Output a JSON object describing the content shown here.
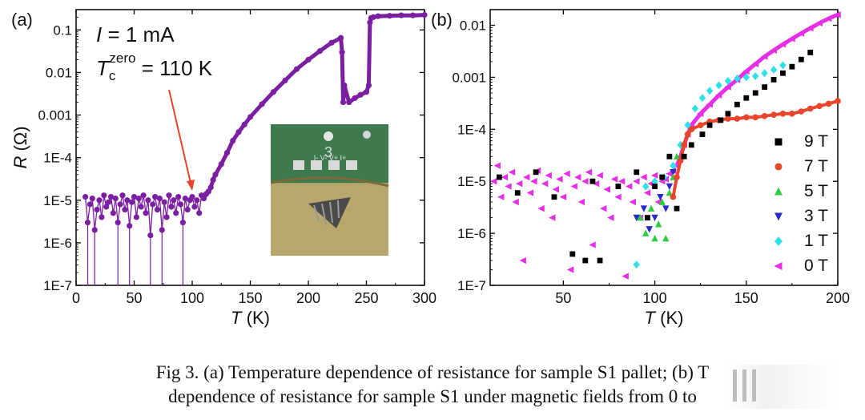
{
  "chart_data": [
    {
      "panel_label": "(a)",
      "type": "scatter",
      "xlabel_symbol": "T",
      "xlabel_unit": "(K)",
      "ylabel_symbol": "R",
      "ylabel_unit": "(Ω)",
      "xlim": [
        0,
        300
      ],
      "ylim": [
        1e-07,
        0.3
      ],
      "yscale": "log",
      "x_ticks": [
        "0",
        "50",
        "100",
        "150",
        "200",
        "250",
        "300"
      ],
      "y_ticks": [
        "1E-7",
        "1E-6",
        "1E-5",
        "1E-4",
        "0.001",
        "0.01",
        "0.1"
      ],
      "annotation_current_sym": "I",
      "annotation_current_val": " = 1 mA",
      "annotation_tc_sym": "T",
      "annotation_tc_sub": "c",
      "annotation_tc_sup": "zero",
      "annotation_tc_val": " = 110 K",
      "inset_label": "3",
      "inset_pins": "I- V- V+ I+",
      "series_color": "#7b1fa2",
      "arrow_color": "#e8452c",
      "series": [
        {
          "name": "",
          "x": [
            8,
            10,
            12,
            14,
            16,
            18,
            20,
            22,
            24,
            26,
            28,
            30,
            32,
            34,
            36,
            38,
            40,
            42,
            44,
            46,
            48,
            50,
            52,
            54,
            56,
            58,
            60,
            62,
            64,
            66,
            68,
            70,
            72,
            74,
            76,
            78,
            80,
            82,
            84,
            86,
            88,
            90,
            92,
            94,
            96,
            98,
            100,
            102,
            104,
            106,
            108,
            110,
            112,
            114,
            116,
            118,
            120,
            125,
            130,
            135,
            140,
            145,
            150,
            160,
            170,
            180,
            190,
            200,
            210,
            220,
            228,
            229,
            230,
            231,
            235,
            240,
            245,
            250,
            252,
            253,
            254,
            256,
            260,
            270,
            280,
            290,
            300
          ],
          "y": [
            1.2e-05,
            3e-06,
            8e-06,
            1.1e-05,
            2e-06,
            6e-06,
            1e-05,
            4e-06,
            1.3e-05,
            7e-06,
            9e-06,
            1.2e-05,
            5e-06,
            1.1e-05,
            3e-06,
            8e-06,
            1.3e-05,
            6e-06,
            1e-05,
            2.5e-06,
            9e-06,
            1.2e-05,
            4e-06,
            1.1e-05,
            7e-06,
            1.3e-05,
            5e-06,
            1e-05,
            1.5e-06,
            8e-06,
            1.2e-05,
            6e-06,
            1.1e-05,
            2e-06,
            9e-06,
            4e-06,
            1.3e-05,
            7e-06,
            1e-05,
            5e-06,
            1.2e-05,
            8e-06,
            3e-06,
            1.1e-05,
            6e-06,
            1e-05,
            1.2e-05,
            7e-06,
            1e-05,
            5e-06,
            1.3e-05,
            1.1e-05,
            1.4e-05,
            1.6e-05,
            2e-05,
            3e-05,
            4e-05,
            7e-05,
            0.00013,
            0.00025,
            0.0004,
            0.0006,
            0.0009,
            0.0018,
            0.0035,
            0.0065,
            0.012,
            0.02,
            0.032,
            0.05,
            0.065,
            0.03,
            0.002,
            0.005,
            0.002,
            0.0025,
            0.003,
            0.0035,
            0.005,
            0.15,
            0.19,
            0.2,
            0.21,
            0.215,
            0.22,
            0.22,
            0.225
          ]
        }
      ]
    },
    {
      "panel_label": "(b)",
      "type": "scatter",
      "xlabel_symbol": "T",
      "xlabel_unit": "(K)",
      "xlim": [
        10,
        200
      ],
      "ylim": [
        1e-07,
        0.02
      ],
      "yscale": "log",
      "x_ticks": [
        "50",
        "100",
        "150",
        "200"
      ],
      "y_ticks": [
        "1E-7",
        "1E-6",
        "1E-5",
        "1E-4",
        "0.001",
        "0.01"
      ],
      "legend_position": "right",
      "series": [
        {
          "name": "9 T",
          "color": "#000000",
          "marker": "square",
          "x": [
            15,
            25,
            35,
            45,
            55,
            62,
            66,
            70,
            80,
            90,
            96,
            100,
            104,
            108,
            112,
            116,
            120,
            126,
            130,
            136,
            140,
            145,
            150,
            155,
            160,
            165,
            170,
            175,
            180,
            185
          ],
          "y": [
            1.2e-05,
            6e-06,
            1.5e-05,
            5e-06,
            4e-07,
            3e-07,
            1e-05,
            3e-07,
            8e-06,
            1.5e-05,
            2e-06,
            8e-06,
            1.2e-05,
            3e-05,
            3e-06,
            3e-05,
            5e-05,
            8e-05,
            0.00012,
            0.00015,
            0.0002,
            0.0003,
            0.0004,
            0.0005,
            0.00065,
            0.0009,
            0.0012,
            0.0016,
            0.0022,
            0.003
          ]
        },
        {
          "name": "7 T",
          "color": "#e8452c",
          "marker": "circle",
          "x": [
            110,
            112,
            114,
            116,
            118,
            120,
            125,
            130,
            135,
            140,
            145,
            150,
            155,
            160,
            165,
            170,
            175,
            180,
            185,
            190,
            195,
            200
          ],
          "y": [
            5e-06,
            1.2e-05,
            2.5e-05,
            5e-05,
            8e-05,
            0.0001,
            0.00012,
            0.00014,
            0.00015,
            0.00016,
            0.00016,
            0.00017,
            0.00017,
            0.00018,
            0.00019,
            0.0002,
            0.0002,
            0.00022,
            0.00025,
            0.00028,
            0.00031,
            0.00035
          ]
        },
        {
          "name": "5 T",
          "color": "#2ecc40",
          "marker": "triangle-up",
          "x": [
            92,
            95,
            98,
            100,
            102,
            104,
            106,
            108,
            110,
            112
          ],
          "y": [
            2e-06,
            1e-06,
            3e-06,
            8e-07,
            1.5e-06,
            4e-06,
            8e-07,
            6e-06,
            1.2e-05,
            3e-05
          ]
        },
        {
          "name": "3 T",
          "color": "#2a2ac8",
          "marker": "triangle-down",
          "x": [
            90,
            94,
            97,
            100,
            103,
            106,
            108,
            110
          ],
          "y": [
            2e-06,
            3e-06,
            1.2e-06,
            2e-06,
            5e-06,
            3e-06,
            8e-06,
            1.5e-05
          ]
        },
        {
          "name": "1 T",
          "color": "#2fe0e8",
          "marker": "diamond",
          "x": [
            90,
            95,
            100,
            105,
            110,
            114,
            118,
            122,
            126,
            130,
            135,
            140,
            145,
            150,
            155,
            160,
            165,
            170
          ],
          "y": [
            2.5e-07,
            8e-06,
            1e-05,
            1.2e-05,
            2e-05,
            5e-05,
            0.00012,
            0.00025,
            0.0004,
            0.00055,
            0.0007,
            0.00085,
            0.00095,
            0.001,
            0.00105,
            0.0012,
            0.0014,
            0.0017
          ]
        },
        {
          "name": "0 T",
          "color": "#e62ee6",
          "marker": "triangle-left",
          "x": [
            12,
            14,
            16,
            18,
            20,
            22,
            24,
            26,
            28,
            30,
            32,
            34,
            36,
            38,
            40,
            42,
            44,
            46,
            48,
            50,
            52,
            54,
            56,
            58,
            60,
            62,
            64,
            66,
            68,
            70,
            72,
            74,
            76,
            78,
            80,
            82,
            84,
            86,
            88,
            90,
            92,
            94,
            96,
            98,
            100,
            102,
            104,
            106,
            108,
            110,
            112,
            114,
            116,
            118,
            120,
            125,
            130,
            135,
            140,
            145,
            150,
            155,
            160,
            165,
            170,
            175,
            180,
            185,
            190,
            195,
            200
          ],
          "y": [
            1e-05,
            2e-05,
            5e-06,
            1.2e-05,
            8e-06,
            1.5e-05,
            4e-06,
            9e-06,
            3e-07,
            1.2e-05,
            6e-06,
            1e-05,
            1.6e-05,
            3e-06,
            9e-06,
            1.3e-05,
            2e-06,
            7e-06,
            1.1e-05,
            5e-06,
            1.4e-05,
            2e-07,
            8e-06,
            1.2e-05,
            4e-06,
            1e-05,
            1.5e-05,
            6e-07,
            9e-06,
            1.3e-05,
            3e-06,
            7e-06,
            2e-06,
            1.1e-05,
            5e-06,
            1e-05,
            1.5e-07,
            8e-06,
            4e-06,
            1e-05,
            2e-06,
            1.2e-05,
            6e-06,
            9e-06,
            1.3e-05,
            4e-06,
            1e-05,
            1.1e-05,
            1.4e-05,
            1.6e-05,
            2e-05,
            3e-05,
            5e-05,
            8e-05,
            0.00012,
            0.0002,
            0.0003,
            0.00045,
            0.00065,
            0.0009,
            0.0013,
            0.0018,
            0.0025,
            0.0033,
            0.0043,
            0.0055,
            0.007,
            0.0088,
            0.011,
            0.0135,
            0.016
          ]
        }
      ]
    }
  ],
  "caption": {
    "line1": "Fig 3. (a) Temperature dependence of resistance for sample S1 pallet; (b) T",
    "line2": "dependence of resistance for sample S1 under magnetic fields from 0 to"
  }
}
